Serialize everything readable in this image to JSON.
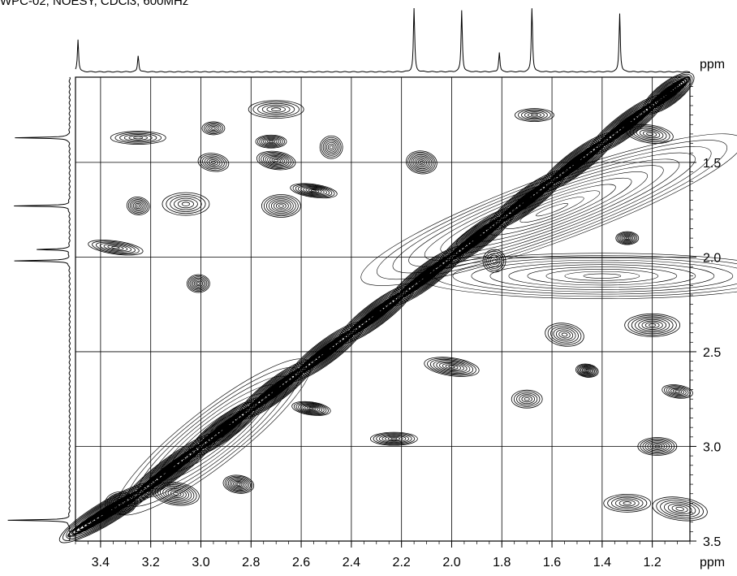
{
  "header": "WPC-02, NOESY, CDCl3, 600MHz",
  "chart_data": {
    "type": "contour",
    "subtype": "2D NMR NOESY spectrum",
    "title": "WPC-02, NOESY, CDCl3, 600MHz",
    "x_axis": {
      "unit_label": "ppm",
      "range": [
        3.5,
        1.05
      ],
      "ticks": [
        "3.4",
        "3.2",
        "3.0",
        "2.8",
        "2.6",
        "2.4",
        "2.2",
        "2.0",
        "1.8",
        "1.6",
        "1.4",
        "1.2"
      ],
      "tick_values": [
        3.4,
        3.2,
        3.0,
        2.8,
        2.6,
        2.4,
        2.2,
        2.0,
        1.8,
        1.6,
        1.4,
        1.2
      ]
    },
    "y_axis": {
      "unit_label": "ppm",
      "position": "right",
      "range": [
        1.05,
        3.5
      ],
      "ticks": [
        "1.5",
        "2.0",
        "2.5",
        "3.0",
        "3.5"
      ],
      "tick_values": [
        1.5,
        2.0,
        2.5,
        3.0,
        3.5
      ]
    },
    "grid": true,
    "projections": {
      "top_peaks_ppm": [
        3.49,
        3.25,
        2.15,
        1.96,
        1.81,
        1.68,
        1.33
      ],
      "left_peaks_ppm": [
        1.37,
        1.73,
        2.02,
        1.96,
        3.39
      ]
    },
    "diagonal": [
      {
        "x": 3.5,
        "y": 3.45
      },
      {
        "x": 3.25,
        "y": 3.25
      },
      {
        "x": 3.0,
        "y": 3.0
      },
      {
        "x": 2.8,
        "y": 2.8
      },
      {
        "x": 2.6,
        "y": 2.6
      },
      {
        "x": 2.4,
        "y": 2.4
      },
      {
        "x": 2.2,
        "y": 2.2
      },
      {
        "x": 2.0,
        "y": 2.0
      },
      {
        "x": 1.8,
        "y": 1.8
      },
      {
        "x": 1.6,
        "y": 1.6
      },
      {
        "x": 1.4,
        "y": 1.4
      },
      {
        "x": 1.2,
        "y": 1.2
      },
      {
        "x": 1.07,
        "y": 1.07
      }
    ],
    "cross_peaks": [
      {
        "x": 2.95,
        "y": 1.32
      },
      {
        "x": 2.95,
        "y": 1.5
      },
      {
        "x": 2.68,
        "y": 1.73
      },
      {
        "x": 2.55,
        "y": 1.65
      },
      {
        "x": 2.7,
        "y": 1.22
      },
      {
        "x": 2.48,
        "y": 1.42
      },
      {
        "x": 2.72,
        "y": 1.39
      },
      {
        "x": 2.7,
        "y": 1.49
      },
      {
        "x": 3.06,
        "y": 1.72
      },
      {
        "x": 3.34,
        "y": 1.95
      },
      {
        "x": 3.01,
        "y": 2.14
      },
      {
        "x": 2.12,
        "y": 1.5
      },
      {
        "x": 1.67,
        "y": 1.25
      },
      {
        "x": 1.21,
        "y": 1.35
      },
      {
        "x": 1.2,
        "y": 2.36
      },
      {
        "x": 1.46,
        "y": 2.6
      },
      {
        "x": 1.7,
        "y": 2.75
      },
      {
        "x": 1.55,
        "y": 2.41
      },
      {
        "x": 2.23,
        "y": 2.96
      },
      {
        "x": 2.0,
        "y": 2.58
      },
      {
        "x": 1.83,
        "y": 2.02
      },
      {
        "x": 1.1,
        "y": 2.71
      },
      {
        "x": 1.18,
        "y": 3.0
      },
      {
        "x": 3.1,
        "y": 3.25
      },
      {
        "x": 3.25,
        "y": 1.37
      },
      {
        "x": 3.25,
        "y": 1.73
      },
      {
        "x": 3.32,
        "y": 3.3
      },
      {
        "x": 2.56,
        "y": 2.8
      },
      {
        "x": 1.3,
        "y": 3.3
      },
      {
        "x": 1.09,
        "y": 3.33
      },
      {
        "x": 1.3,
        "y": 1.9
      },
      {
        "x": 2.85,
        "y": 3.2
      }
    ]
  }
}
